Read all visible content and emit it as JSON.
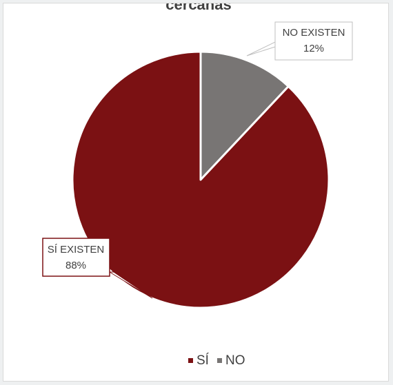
{
  "chart_data": {
    "type": "pie",
    "title": "cercanas",
    "categories": [
      "SÍ",
      "NO"
    ],
    "values": [
      88,
      12
    ],
    "colors": {
      "SÍ": "#7b1113",
      "NO": "#787574"
    },
    "data_labels": [
      {
        "category": "SÍ",
        "lines": [
          "SÍ EXISTEN",
          "88%"
        ]
      },
      {
        "category": "NO",
        "lines": [
          "NO EXISTEN",
          "12%"
        ]
      }
    ],
    "legend": {
      "position": "bottom",
      "entries": [
        "SÍ",
        "NO"
      ]
    }
  }
}
